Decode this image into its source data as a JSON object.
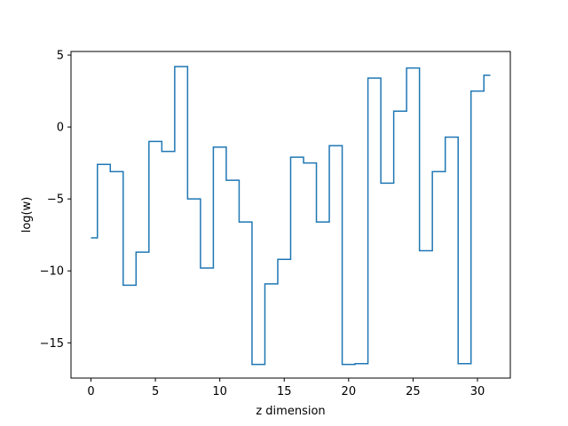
{
  "chart_data": {
    "type": "line",
    "drawstyle": "steps-mid",
    "title": "",
    "xlabel": "z dimension",
    "ylabel": "log(w)",
    "xlim": [
      -1.55,
      32.55
    ],
    "ylim": [
      -17.45,
      5.25
    ],
    "xticks": [
      0,
      5,
      10,
      15,
      20,
      25,
      30
    ],
    "yticks": [
      5,
      0,
      -5,
      -10,
      -15
    ],
    "grid": false,
    "line_color": "#1f77b4",
    "x": [
      0,
      1,
      2,
      3,
      4,
      5,
      6,
      7,
      8,
      9,
      10,
      11,
      12,
      13,
      14,
      15,
      16,
      17,
      18,
      19,
      20,
      21,
      22,
      23,
      24,
      25,
      26,
      27,
      28,
      29,
      30,
      31
    ],
    "series": [
      {
        "values": [
          -7.7,
          -2.6,
          -3.1,
          -11.0,
          -8.7,
          -1.0,
          -1.7,
          4.2,
          -5.0,
          -9.8,
          -1.4,
          -3.7,
          -6.6,
          -16.5,
          -10.9,
          -9.2,
          -2.1,
          -2.5,
          -6.6,
          -1.3,
          -16.5,
          -16.45,
          3.4,
          -3.9,
          1.1,
          4.1,
          -8.6,
          -3.1,
          -0.7,
          -16.45,
          2.5,
          3.6
        ]
      }
    ]
  }
}
